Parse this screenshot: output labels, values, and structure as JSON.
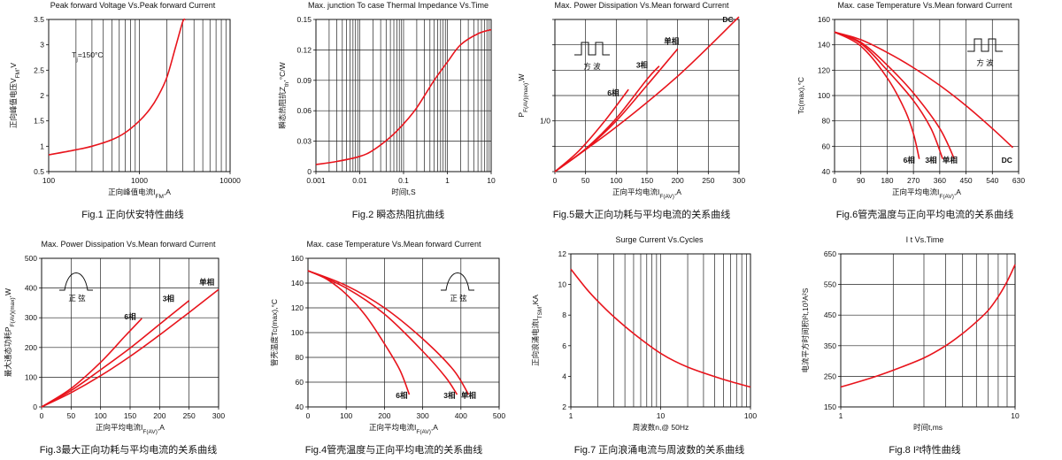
{
  "chart_data": [
    {
      "id": "fig1",
      "type": "line",
      "title": "Peak forward Voltage Vs.Peak forward Current",
      "caption": "Fig.1 正向伏安特性曲线",
      "xlabel": "正向峰值电流I_FM,A",
      "ylabel": "正向峰值电压V_FM,V",
      "xscale": "log",
      "xlim": [
        100,
        10000
      ],
      "ylim": [
        0.5,
        3.5
      ],
      "xticks": [
        100,
        1000,
        10000
      ],
      "yticks": [
        0.5,
        1,
        1.5,
        2,
        2.5,
        3,
        3.5
      ],
      "ytick_labels": [
        "0.5",
        "1",
        "1.5",
        "2",
        "2.5",
        "3",
        "3.5"
      ],
      "grid_x": "log-decade",
      "grid_y": false,
      "annotations": [
        {
          "text": "T_j=150°C",
          "x": 180,
          "y": 2.75
        }
      ],
      "series": [
        {
          "x": [
            100,
            200,
            300,
            500,
            700,
            1000,
            1300,
            1600,
            2000,
            2500,
            3000,
            3200
          ],
          "y": [
            0.83,
            0.93,
            1.0,
            1.13,
            1.27,
            1.5,
            1.73,
            1.98,
            2.35,
            2.95,
            3.45,
            3.5
          ]
        }
      ]
    },
    {
      "id": "fig2",
      "type": "line",
      "title": "Max. junction To case Thermal Impedance Vs.Time",
      "caption": "Fig.2 瞬态热阻抗曲线",
      "xlabel": "时间t,S",
      "ylabel": "瞬态热阻抗Z_th,°C/W",
      "xscale": "log",
      "xlim": [
        0.001,
        10
      ],
      "ylim": [
        0,
        0.15
      ],
      "xticks": [
        0.001,
        0.01,
        0.1,
        1,
        10
      ],
      "xtick_labels": [
        "0.001",
        "0.01",
        "0.1",
        "1",
        "10"
      ],
      "yticks": [
        0,
        0.03,
        0.06,
        0.09,
        0.12,
        0.15
      ],
      "ytick_labels": [
        "0",
        "0.03",
        "0.06",
        "0.09",
        "0.12",
        "0.15"
      ],
      "grid_x": "log-decade",
      "grid_y": true,
      "series": [
        {
          "x": [
            0.001,
            0.003,
            0.01,
            0.02,
            0.05,
            0.1,
            0.2,
            0.5,
            1,
            2,
            5,
            10
          ],
          "y": [
            0.007,
            0.01,
            0.015,
            0.021,
            0.034,
            0.047,
            0.063,
            0.09,
            0.108,
            0.125,
            0.136,
            0.14
          ]
        }
      ]
    },
    {
      "id": "fig5",
      "type": "line",
      "title": "Max. Power Dissipation Vs.Mean forward Current",
      "caption": "Fig.5最大正向功耗与平均电流的关系曲线",
      "xlabel": "正向平均电流I_F(AV),A",
      "ylabel": "P_F(AV)(max),W",
      "xlim": [
        0,
        300
      ],
      "ylim": [
        0,
        300
      ],
      "xticks": [
        0,
        50,
        100,
        150,
        200,
        250,
        300
      ],
      "yticks": [
        0,
        50,
        100,
        150,
        200,
        250,
        300
      ],
      "ytick_labels": [
        "",
        "",
        "1/0",
        "",
        "",
        "",
        ""
      ],
      "grid_x": true,
      "grid_y": true,
      "inset": "方  波",
      "series": [
        {
          "name": "6相",
          "x": [
            0,
            40,
            80,
            120
          ],
          "y": [
            0,
            42,
            98,
            162
          ]
        },
        {
          "name": "3相",
          "x": [
            0,
            50,
            100,
            150,
            170
          ],
          "y": [
            0,
            45,
            105,
            182,
            208
          ]
        },
        {
          "name": "单相",
          "x": [
            0,
            50,
            100,
            150,
            200
          ],
          "y": [
            0,
            44,
            100,
            170,
            242
          ]
        },
        {
          "name": "DC",
          "x": [
            0,
            100,
            200,
            300
          ],
          "y": [
            0,
            88,
            188,
            305
          ]
        }
      ]
    },
    {
      "id": "fig6",
      "type": "line",
      "title": "Max. case Temperature Vs.Mean forward Current",
      "caption": "Fig.6管壳温度与正向平均电流的关系曲线",
      "xlabel": "正向平均电流I_F(AV),A",
      "ylabel": "Tc(max),°C",
      "xlim": [
        0,
        630
      ],
      "ylim": [
        40,
        160
      ],
      "xticks": [
        0,
        90,
        180,
        270,
        360,
        450,
        540,
        630
      ],
      "yticks": [
        40,
        60,
        80,
        100,
        120,
        140,
        160
      ],
      "grid_x": true,
      "grid_y": true,
      "inset": "方  波",
      "series": [
        {
          "name": "6相",
          "x": [
            0,
            90,
            180,
            240,
            270,
            290
          ],
          "y": [
            150,
            139,
            114,
            89,
            70,
            50
          ]
        },
        {
          "name": "3相",
          "x": [
            0,
            90,
            180,
            270,
            330,
            370
          ],
          "y": [
            150,
            141,
            120,
            96,
            74,
            50
          ]
        },
        {
          "name": "单相",
          "x": [
            0,
            90,
            180,
            270,
            360,
            410
          ],
          "y": [
            150,
            142,
            124,
            102,
            74,
            50
          ]
        },
        {
          "name": "DC",
          "x": [
            0,
            90,
            180,
            270,
            360,
            450,
            540,
            610
          ],
          "y": [
            150,
            144,
            134,
            122,
            108,
            92,
            74,
            59
          ]
        }
      ]
    },
    {
      "id": "fig3",
      "type": "line",
      "title": "Max. Power Dissipation Vs.Mean forward Current",
      "caption": "Fig.3最大正向功耗与平均电流的关系曲线",
      "xlabel": "正向平均电流I_F(AV),A",
      "ylabel": "最大通态功耗P_F(AV)(max),W",
      "xlim": [
        0,
        300
      ],
      "ylim": [
        0,
        500
      ],
      "xticks": [
        0,
        50,
        100,
        150,
        200,
        250,
        300
      ],
      "yticks": [
        0,
        100,
        200,
        300,
        400,
        500
      ],
      "grid_x": true,
      "grid_y": true,
      "inset": "正  弦",
      "series": [
        {
          "name": "6相",
          "x": [
            0,
            50,
            100,
            140,
            170
          ],
          "y": [
            0,
            62,
            150,
            235,
            298
          ]
        },
        {
          "name": "3相",
          "x": [
            0,
            50,
            100,
            150,
            200,
            250
          ],
          "y": [
            0,
            55,
            125,
            198,
            278,
            358
          ]
        },
        {
          "name": "单相",
          "x": [
            0,
            50,
            100,
            150,
            200,
            250,
            300
          ],
          "y": [
            0,
            48,
            105,
            170,
            242,
            318,
            395
          ]
        }
      ]
    },
    {
      "id": "fig4",
      "type": "line",
      "title": "Max. case Temperature Vs.Mean forward Current",
      "caption": "Fig.4管壳温度与正向平均电流的关系曲线",
      "xlabel": "正向平均电流I_F(AV),A",
      "ylabel": "管壳温度Tc(max),°C",
      "xlim": [
        0,
        500
      ],
      "ylim": [
        40,
        160
      ],
      "xticks": [
        0,
        100,
        200,
        300,
        400,
        500
      ],
      "yticks": [
        40,
        60,
        80,
        100,
        120,
        140,
        160
      ],
      "grid_x": true,
      "grid_y": true,
      "inset": "正  弦",
      "series": [
        {
          "name": "6相",
          "x": [
            0,
            50,
            100,
            150,
            200,
            240,
            265
          ],
          "y": [
            150,
            143,
            131,
            114,
            91,
            70,
            50
          ]
        },
        {
          "name": "3相",
          "x": [
            0,
            100,
            200,
            300,
            360,
            390
          ],
          "y": [
            150,
            136,
            115,
            85,
            64,
            50
          ]
        },
        {
          "name": "单相",
          "x": [
            0,
            100,
            200,
            300,
            380,
            420
          ],
          "y": [
            150,
            138,
            120,
            95,
            70,
            50
          ]
        }
      ]
    },
    {
      "id": "fig7",
      "type": "line",
      "title": "Surge Current Vs.Cycles",
      "caption": "Fig.7 正向浪涌电流与周波数的关系曲线",
      "xlabel": "周波数n,@ 50Hz",
      "ylabel": "正向浪涌电流I_TSM,KA",
      "xscale": "log",
      "xlim": [
        1,
        100
      ],
      "ylim": [
        2,
        12
      ],
      "xticks": [
        1,
        10,
        100
      ],
      "yticks": [
        2,
        4,
        6,
        8,
        10,
        12
      ],
      "grid_x": "log-decade",
      "grid_y": false,
      "series": [
        {
          "x": [
            1,
            1.5,
            2,
            3,
            5,
            10,
            20,
            50,
            100
          ],
          "y": [
            11.0,
            9.7,
            8.9,
            7.9,
            6.8,
            5.5,
            4.6,
            3.8,
            3.3
          ]
        }
      ]
    },
    {
      "id": "fig8",
      "type": "line",
      "title": "I t Vs.Time",
      "caption": "Fig.8 I²t特性曲线",
      "xlabel": "时间t,ms",
      "ylabel": "电流平方时间积I²t,10³A²S",
      "xscale": "log",
      "xlim": [
        1,
        10
      ],
      "ylim": [
        150,
        650
      ],
      "xticks": [
        1,
        10
      ],
      "yticks": [
        150,
        250,
        350,
        450,
        550,
        650
      ],
      "grid_x": "log-decade",
      "grid_y": true,
      "series": [
        {
          "x": [
            1,
            1.5,
            2,
            3,
            4,
            5,
            6,
            7,
            8,
            9,
            10
          ],
          "y": [
            215,
            245,
            270,
            310,
            350,
            390,
            428,
            465,
            510,
            560,
            615
          ]
        }
      ]
    }
  ]
}
